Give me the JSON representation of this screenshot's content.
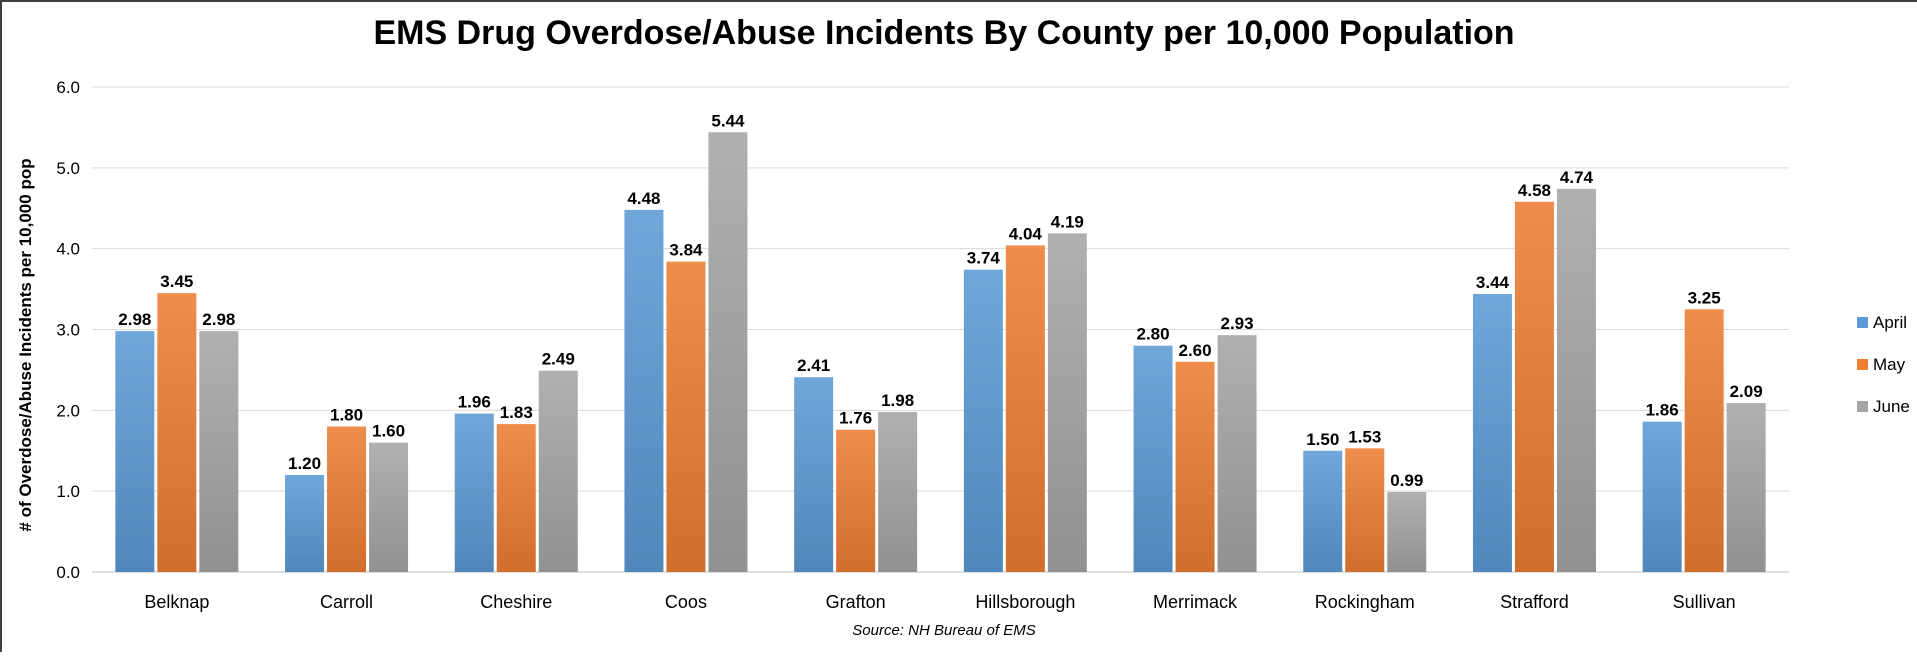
{
  "chart_data": {
    "type": "bar",
    "title": "EMS Drug Overdose/Abuse Incidents By County per 10,000 Population",
    "xlabel": "",
    "ylabel": "# of Overdose/Abuse Incidents per 10,000 pop",
    "source": "Source: NH Bureau of EMS",
    "ylim": [
      0,
      6
    ],
    "yticks": [
      "0.0",
      "1.0",
      "2.0",
      "3.0",
      "4.0",
      "5.0",
      "6.0"
    ],
    "grid": true,
    "legend_position": "right",
    "categories": [
      "Belknap",
      "Carroll",
      "Cheshire",
      "Coos",
      "Grafton",
      "Hillsborough",
      "Merrimack",
      "Rockingham",
      "Strafford",
      "Sullivan"
    ],
    "series": [
      {
        "name": "April",
        "color": "#5B9BD5",
        "values": [
          2.98,
          1.2,
          1.96,
          4.48,
          2.41,
          3.74,
          2.8,
          1.5,
          3.44,
          1.86
        ],
        "labels": [
          "2.98",
          "1.20",
          "1.96",
          "4.48",
          "2.41",
          "3.74",
          "2.80",
          "1.50",
          "3.44",
          "1.86"
        ]
      },
      {
        "name": "May",
        "color": "#ED7D31",
        "values": [
          3.45,
          1.8,
          1.83,
          3.84,
          1.76,
          4.04,
          2.6,
          1.53,
          4.58,
          3.25
        ],
        "labels": [
          "3.45",
          "1.80",
          "1.83",
          "3.84",
          "1.76",
          "4.04",
          "2.60",
          "1.53",
          "4.58",
          "3.25"
        ]
      },
      {
        "name": "June",
        "color": "#A5A5A5",
        "values": [
          2.98,
          1.6,
          2.49,
          5.44,
          1.98,
          4.19,
          2.93,
          0.99,
          4.74,
          2.09
        ],
        "labels": [
          "2.98",
          "1.60",
          "2.49",
          "5.44",
          "1.98",
          "4.19",
          "2.93",
          "0.99",
          "4.74",
          "2.09"
        ]
      }
    ]
  }
}
